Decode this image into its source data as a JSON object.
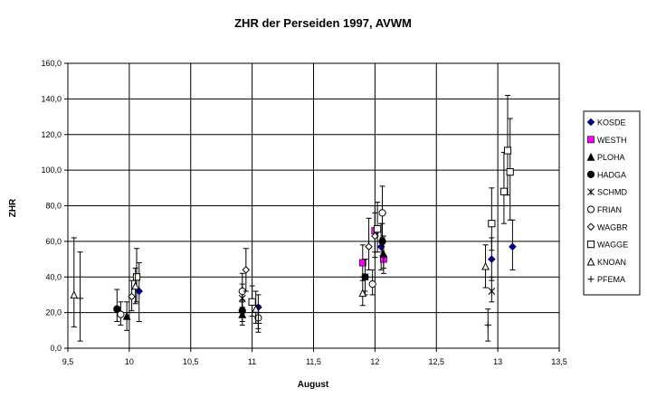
{
  "chart_data": {
    "type": "scatter",
    "title": "ZHR der Perseiden 1997, AVWM",
    "xlabel": "August",
    "ylabel": "ZHR",
    "xlim": [
      9.5,
      13.5
    ],
    "ylim": [
      0,
      160
    ],
    "x_ticks": [
      "9,5",
      "10",
      "10,5",
      "11",
      "11,5",
      "12",
      "12,5",
      "13",
      "13,5"
    ],
    "y_ticks": [
      "0,0",
      "20,0",
      "40,0",
      "60,0",
      "80,0",
      "100,0",
      "120,0",
      "140,0",
      "160,0"
    ],
    "grid": true,
    "legend_position": "right",
    "series": [
      {
        "name": "KOSDE",
        "marker": "diamond-filled",
        "color": "#000080",
        "points": [
          [
            10.08,
            32,
            15,
            48
          ],
          [
            11.05,
            23,
            14,
            30
          ],
          [
            12.05,
            57,
            44,
            70
          ],
          [
            12.95,
            50,
            38,
            62
          ],
          [
            13.12,
            57,
            44,
            72
          ]
        ]
      },
      {
        "name": "WESTH",
        "marker": "square-filled",
        "color": "#ff00ff",
        "points": [
          [
            11.9,
            48,
            38,
            58
          ],
          [
            12.0,
            66,
            54,
            80
          ],
          [
            12.07,
            50,
            42,
            60
          ]
        ]
      },
      {
        "name": "PLOHA",
        "marker": "triangle-filled",
        "color": "#000000",
        "points": [
          [
            9.98,
            18,
            10,
            26
          ],
          [
            10.92,
            19,
            13,
            26
          ],
          [
            12.07,
            53,
            45,
            63
          ]
        ]
      },
      {
        "name": "HADGA",
        "marker": "circle-filled",
        "color": "#000000",
        "points": [
          [
            9.9,
            22,
            15,
            33
          ],
          [
            10.92,
            21,
            15,
            27
          ],
          [
            11.92,
            40,
            32,
            50
          ],
          [
            12.06,
            60,
            52,
            70
          ]
        ]
      },
      {
        "name": "SCHMD",
        "marker": "star",
        "color": "#000000",
        "points": [
          [
            10.92,
            28,
            20,
            36
          ],
          [
            11.92,
            40,
            30,
            50
          ],
          [
            12.95,
            32,
            26,
            40
          ]
        ]
      },
      {
        "name": "FRIAN",
        "marker": "circle-open",
        "color": "#000000",
        "points": [
          [
            9.93,
            19,
            13,
            26
          ],
          [
            10.92,
            32,
            23,
            42
          ],
          [
            11.05,
            17,
            11,
            24
          ],
          [
            11.98,
            36,
            30,
            44
          ],
          [
            12.06,
            76,
            62,
            91
          ]
        ]
      },
      {
        "name": "WAGBR",
        "marker": "diamond-open",
        "color": "#000000",
        "points": [
          [
            10.02,
            29,
            21,
            38
          ],
          [
            10.95,
            44,
            32,
            56
          ],
          [
            11.95,
            57,
            44,
            73
          ],
          [
            12.0,
            63,
            51,
            76
          ]
        ]
      },
      {
        "name": "WAGGE",
        "marker": "square-open",
        "color": "#000000",
        "points": [
          [
            10.06,
            40,
            26,
            56
          ],
          [
            11.0,
            26,
            18,
            35
          ],
          [
            12.02,
            67,
            54,
            82
          ],
          [
            12.95,
            70,
            55,
            90
          ],
          [
            13.05,
            88,
            70,
            110
          ],
          [
            13.08,
            111,
            86,
            142
          ],
          [
            13.1,
            99,
            72,
            129
          ]
        ]
      },
      {
        "name": "KNOAN",
        "marker": "triangle-open",
        "color": "#000000",
        "points": [
          [
            9.55,
            30,
            12,
            62
          ],
          [
            10.05,
            35,
            25,
            45
          ],
          [
            11.03,
            22,
            14,
            32
          ],
          [
            11.9,
            31,
            24,
            40
          ],
          [
            12.9,
            46,
            34,
            58
          ]
        ]
      },
      {
        "name": "PFEMA",
        "marker": "plus",
        "color": "#000000",
        "points": [
          [
            9.6,
            28,
            4,
            54
          ],
          [
            11.05,
            14,
            9,
            20
          ],
          [
            12.92,
            13,
            4,
            22
          ]
        ]
      }
    ]
  }
}
